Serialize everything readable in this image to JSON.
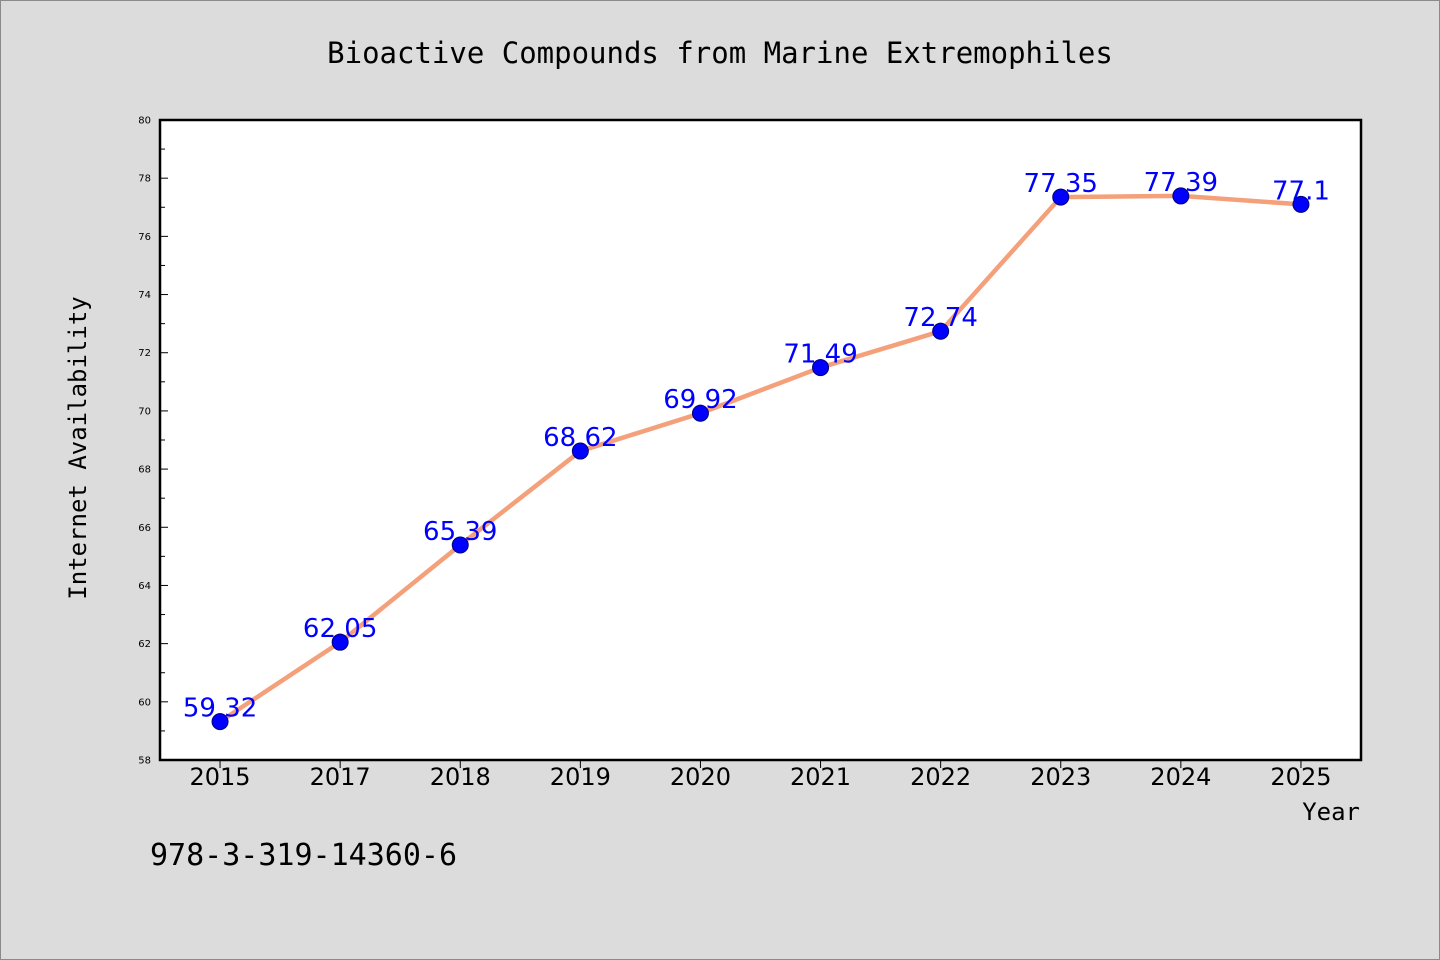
{
  "colors": {
    "background": "#dcdcdc",
    "plot_background": "#ffffff",
    "axis": "#000000",
    "line": "#f4a07a",
    "marker_fill": "#0000ff",
    "marker_edge": "#00007a",
    "data_label": "#0000ff"
  },
  "footer_text": "978-3-319-14360-6",
  "chart_data": {
    "type": "line",
    "title": "Bioactive Compounds from Marine Extremophiles",
    "xlabel": "Year",
    "ylabel": "Internet Availability",
    "categories": [
      "2015",
      "2017",
      "2018",
      "2019",
      "2020",
      "2021",
      "2022",
      "2023",
      "2024",
      "2025"
    ],
    "series": [
      {
        "values": [
          59.32,
          62.05,
          65.39,
          68.62,
          69.92,
          71.49,
          72.74,
          77.35,
          77.39,
          77.1
        ]
      }
    ],
    "ylim": [
      58,
      80
    ],
    "yticks": [
      58,
      60,
      62,
      64,
      66,
      68,
      70,
      72,
      74,
      76,
      78,
      80
    ],
    "y_minor_step": 1,
    "data_labels": true,
    "grid": false
  }
}
